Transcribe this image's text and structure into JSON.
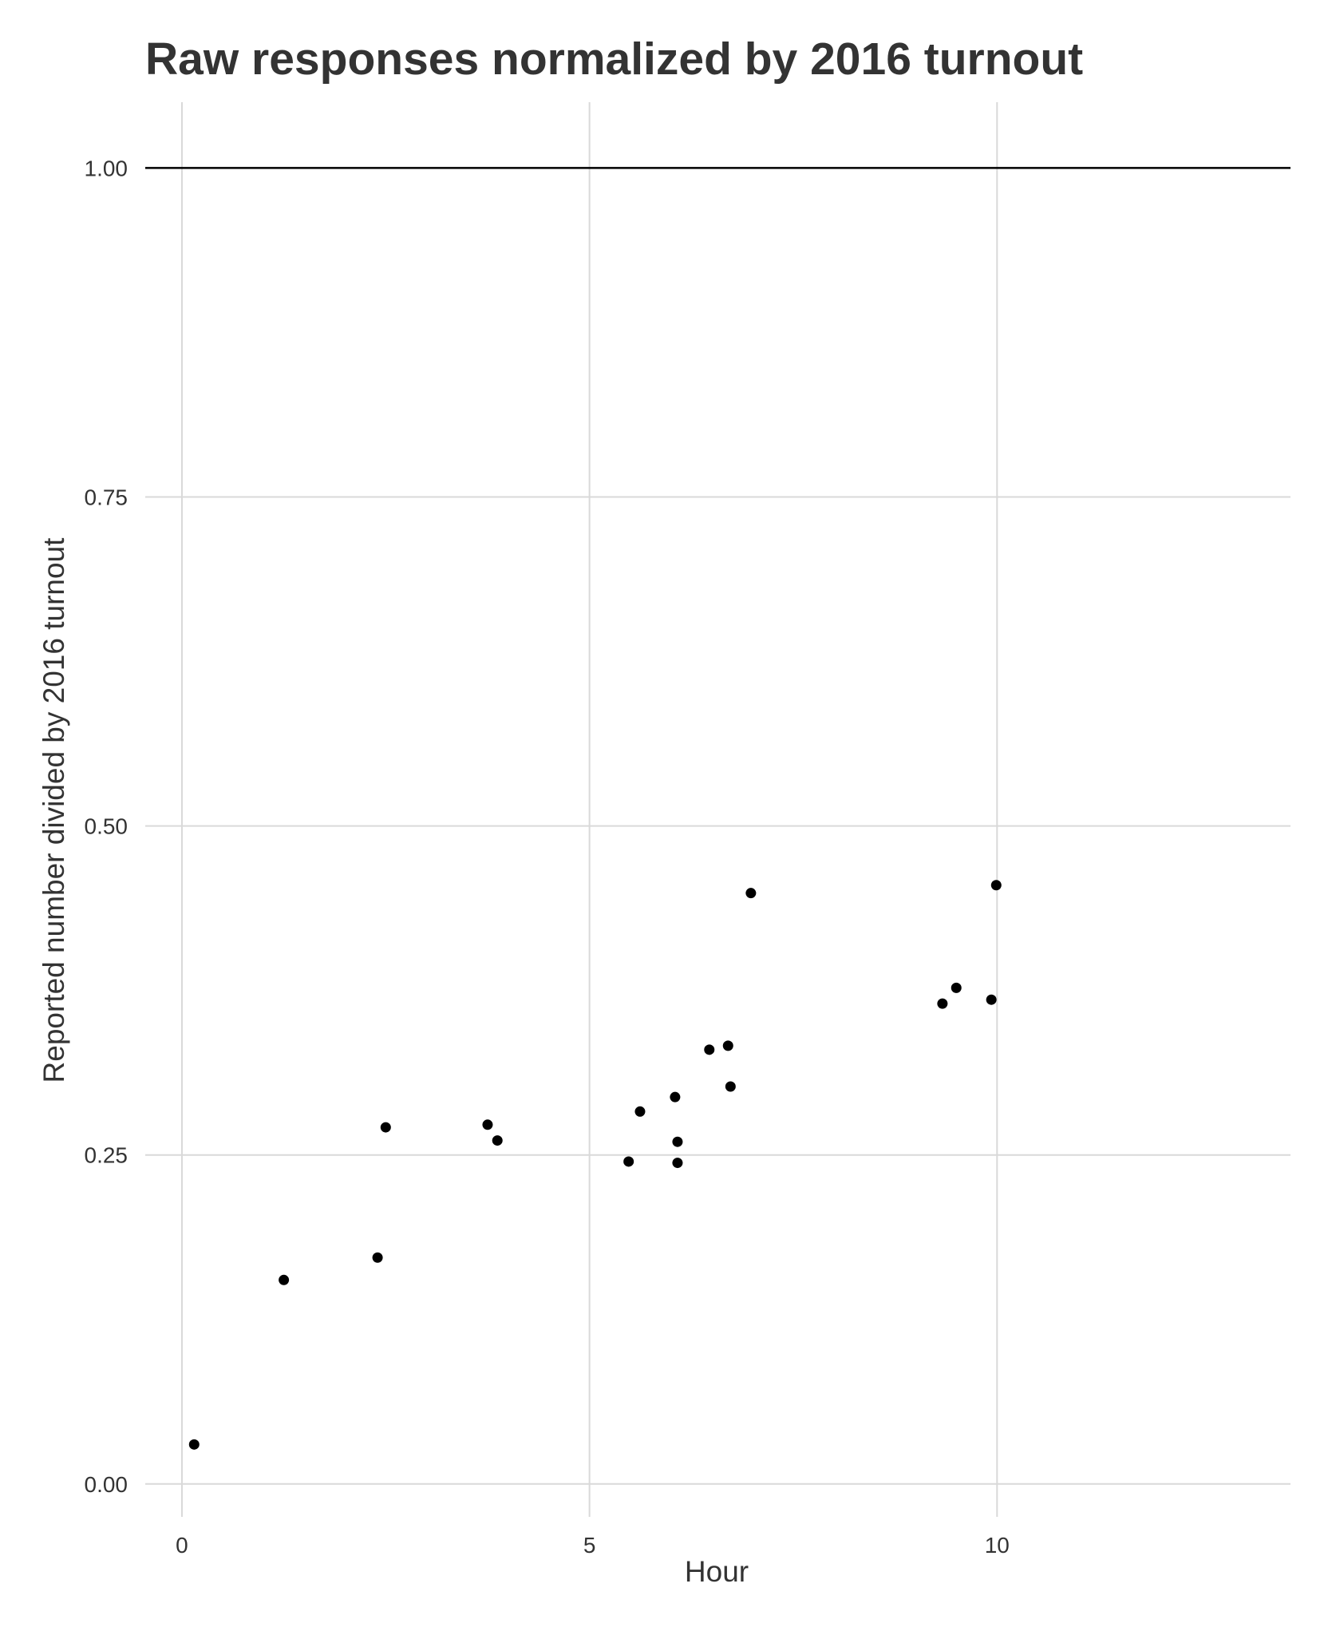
{
  "chart_data": {
    "type": "scatter",
    "title": "Raw responses normalized by 2016 turnout",
    "xlabel": "Hour",
    "ylabel": "Reported number divided by 2016 turnout",
    "xlim": [
      -0.45,
      13.6
    ],
    "ylim": [
      -0.025,
      1.05
    ],
    "x_ticks": [
      {
        "value": 0,
        "label": "0"
      },
      {
        "value": 5,
        "label": "5"
      },
      {
        "value": 10,
        "label": "10"
      }
    ],
    "y_ticks": [
      {
        "value": 0.0,
        "label": "0.00"
      },
      {
        "value": 0.25,
        "label": "0.25"
      },
      {
        "value": 0.5,
        "label": "0.50"
      },
      {
        "value": 0.75,
        "label": "0.75"
      },
      {
        "value": 1.0,
        "label": "1.00"
      }
    ],
    "reference_line": {
      "y": 1.0,
      "color": "#000000"
    },
    "grid": true,
    "legend": "none",
    "colors": {
      "points": "#000000",
      "grid": "#d9d9d9",
      "text": "#333333"
    },
    "points": [
      {
        "x": 0.15,
        "y": 0.03
      },
      {
        "x": 1.25,
        "y": 0.155
      },
      {
        "x": 2.4,
        "y": 0.172
      },
      {
        "x": 2.5,
        "y": 0.271
      },
      {
        "x": 3.75,
        "y": 0.273
      },
      {
        "x": 3.87,
        "y": 0.261
      },
      {
        "x": 5.48,
        "y": 0.245
      },
      {
        "x": 5.62,
        "y": 0.283
      },
      {
        "x": 6.05,
        "y": 0.294
      },
      {
        "x": 6.08,
        "y": 0.26
      },
      {
        "x": 6.08,
        "y": 0.244
      },
      {
        "x": 6.47,
        "y": 0.33
      },
      {
        "x": 6.7,
        "y": 0.333
      },
      {
        "x": 6.73,
        "y": 0.302
      },
      {
        "x": 6.98,
        "y": 0.449
      },
      {
        "x": 9.33,
        "y": 0.365
      },
      {
        "x": 9.5,
        "y": 0.377
      },
      {
        "x": 9.93,
        "y": 0.368
      },
      {
        "x": 9.99,
        "y": 0.455
      }
    ]
  }
}
